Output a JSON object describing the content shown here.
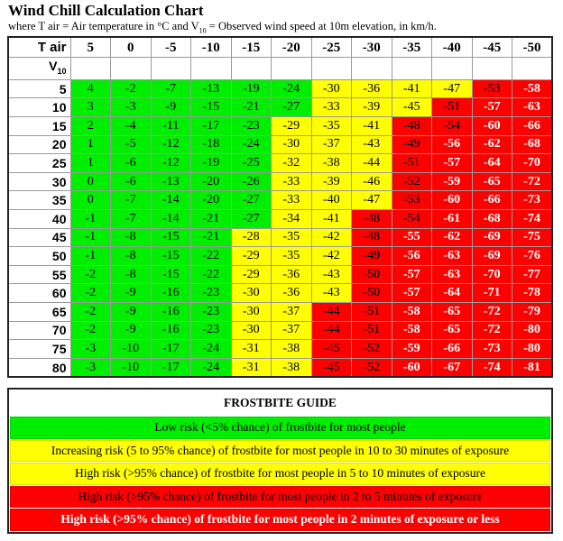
{
  "header": {
    "title": "Wind Chill Calculation Chart",
    "subtitle_part1": "where T air = Air temperature in °C and V",
    "subtitle_sub": "10",
    "subtitle_part2": " = Observed wind speed at 10m elevation, in km/h."
  },
  "table": {
    "col_label": "T air",
    "row_label_main": "V",
    "row_label_sub": "10",
    "columns": [
      "5",
      "0",
      "-5",
      "-10",
      "-15",
      "-20",
      "-25",
      "-30",
      "-35",
      "-40",
      "-45",
      "-50"
    ],
    "rows": [
      {
        "v": "5",
        "cells": [
          "4",
          "-2",
          "-7",
          "-13",
          "-19",
          "-24",
          "-30",
          "-36",
          "-41",
          "-47",
          "-53",
          "-58"
        ],
        "risk": [
          "g",
          "g",
          "g",
          "g",
          "g",
          "g",
          "y",
          "y",
          "y",
          "y",
          "r",
          "rw"
        ]
      },
      {
        "v": "10",
        "cells": [
          "3",
          "-3",
          "-9",
          "-15",
          "-21",
          "-27",
          "-33",
          "-39",
          "-45",
          "-51",
          "-57",
          "-63"
        ],
        "risk": [
          "g",
          "g",
          "g",
          "g",
          "g",
          "g",
          "y",
          "y",
          "y",
          "r",
          "rw",
          "rw"
        ]
      },
      {
        "v": "15",
        "cells": [
          "2",
          "-4",
          "-11",
          "-17",
          "-23",
          "-29",
          "-35",
          "-41",
          "-48",
          "-54",
          "-60",
          "-66"
        ],
        "risk": [
          "g",
          "g",
          "g",
          "g",
          "g",
          "y",
          "y",
          "y",
          "r",
          "r",
          "rw",
          "rw"
        ]
      },
      {
        "v": "20",
        "cells": [
          "1",
          "-5",
          "-12",
          "-18",
          "-24",
          "-30",
          "-37",
          "-43",
          "-49",
          "-56",
          "-62",
          "-68"
        ],
        "risk": [
          "g",
          "g",
          "g",
          "g",
          "g",
          "y",
          "y",
          "y",
          "r",
          "rw",
          "rw",
          "rw"
        ]
      },
      {
        "v": "25",
        "cells": [
          "1",
          "-6",
          "-12",
          "-19",
          "-25",
          "-32",
          "-38",
          "-44",
          "-51",
          "-57",
          "-64",
          "-70"
        ],
        "risk": [
          "g",
          "g",
          "g",
          "g",
          "g",
          "y",
          "y",
          "y",
          "r",
          "rw",
          "rw",
          "rw"
        ]
      },
      {
        "v": "30",
        "cells": [
          "0",
          "-6",
          "-13",
          "-20",
          "-26",
          "-33",
          "-39",
          "-46",
          "-52",
          "-59",
          "-65",
          "-72"
        ],
        "risk": [
          "g",
          "g",
          "g",
          "g",
          "g",
          "y",
          "y",
          "y",
          "r",
          "rw",
          "rw",
          "rw"
        ]
      },
      {
        "v": "35",
        "cells": [
          "0",
          "-7",
          "-14",
          "-20",
          "-27",
          "-33",
          "-40",
          "-47",
          "-53",
          "-60",
          "-66",
          "-73"
        ],
        "risk": [
          "g",
          "g",
          "g",
          "g",
          "g",
          "y",
          "y",
          "y",
          "r",
          "rw",
          "rw",
          "rw"
        ]
      },
      {
        "v": "40",
        "cells": [
          "-1",
          "-7",
          "-14",
          "-21",
          "-27",
          "-34",
          "-41",
          "-48",
          "-54",
          "-61",
          "-68",
          "-74"
        ],
        "risk": [
          "g",
          "g",
          "g",
          "g",
          "g",
          "y",
          "y",
          "r",
          "r",
          "rw",
          "rw",
          "rw"
        ]
      },
      {
        "v": "45",
        "cells": [
          "-1",
          "-8",
          "-15",
          "-21",
          "-28",
          "-35",
          "-42",
          "-48",
          "-55",
          "-62",
          "-69",
          "-75"
        ],
        "risk": [
          "g",
          "g",
          "g",
          "g",
          "y",
          "y",
          "y",
          "r",
          "rw",
          "rw",
          "rw",
          "rw"
        ]
      },
      {
        "v": "50",
        "cells": [
          "-1",
          "-8",
          "-15",
          "-22",
          "-29",
          "-35",
          "-42",
          "-49",
          "-56",
          "-63",
          "-69",
          "-76"
        ],
        "risk": [
          "g",
          "g",
          "g",
          "g",
          "y",
          "y",
          "y",
          "r",
          "rw",
          "rw",
          "rw",
          "rw"
        ]
      },
      {
        "v": "55",
        "cells": [
          "-2",
          "-8",
          "-15",
          "-22",
          "-29",
          "-36",
          "-43",
          "-50",
          "-57",
          "-63",
          "-70",
          "-77"
        ],
        "risk": [
          "g",
          "g",
          "g",
          "g",
          "y",
          "y",
          "y",
          "r",
          "rw",
          "rw",
          "rw",
          "rw"
        ]
      },
      {
        "v": "60",
        "cells": [
          "-2",
          "-9",
          "-16",
          "-23",
          "-30",
          "-36",
          "-43",
          "-50",
          "-57",
          "-64",
          "-71",
          "-78"
        ],
        "risk": [
          "g",
          "g",
          "g",
          "g",
          "y",
          "y",
          "y",
          "r",
          "rw",
          "rw",
          "rw",
          "rw"
        ]
      },
      {
        "v": "65",
        "cells": [
          "-2",
          "-9",
          "-16",
          "-23",
          "-30",
          "-37",
          "-44",
          "-51",
          "-58",
          "-65",
          "-72",
          "-79"
        ],
        "risk": [
          "g",
          "g",
          "g",
          "g",
          "y",
          "y",
          "r",
          "r",
          "rw",
          "rw",
          "rw",
          "rw"
        ]
      },
      {
        "v": "70",
        "cells": [
          "-2",
          "-9",
          "-16",
          "-23",
          "-30",
          "-37",
          "-44",
          "-51",
          "-58",
          "-65",
          "-72",
          "-80"
        ],
        "risk": [
          "g",
          "g",
          "g",
          "g",
          "y",
          "y",
          "r",
          "r",
          "rw",
          "rw",
          "rw",
          "rw"
        ]
      },
      {
        "v": "75",
        "cells": [
          "-3",
          "-10",
          "-17",
          "-24",
          "-31",
          "-38",
          "-45",
          "-52",
          "-59",
          "-66",
          "-73",
          "-80"
        ],
        "risk": [
          "g",
          "g",
          "g",
          "g",
          "y",
          "y",
          "r",
          "r",
          "rw",
          "rw",
          "rw",
          "rw"
        ]
      },
      {
        "v": "80",
        "cells": [
          "-3",
          "-10",
          "-17",
          "-24",
          "-31",
          "-38",
          "-45",
          "-52",
          "-60",
          "-67",
          "-74",
          "-81"
        ],
        "risk": [
          "g",
          "g",
          "g",
          "g",
          "y",
          "y",
          "r",
          "r",
          "rw",
          "rw",
          "rw",
          "rw"
        ]
      }
    ]
  },
  "guide": {
    "title": "FROSTBITE GUIDE",
    "items": [
      {
        "risk": "g",
        "text": "Low risk (<5% chance) of frostbite for most people"
      },
      {
        "risk": "y",
        "text": "Increasing risk (5 to 95% chance) of frostbite for most people in 10 to 30 minutes of exposure"
      },
      {
        "risk": "y",
        "text": "High risk (>95% chance) of frostbite for most people in 5 to 10 minutes of exposure"
      },
      {
        "risk": "r",
        "text": "High risk (>95% chance) of frostbite for most people in 2 to 5 minutes of exposure"
      },
      {
        "risk": "rw",
        "text": "High risk (>95% chance) of frostbite  for most people in 2 minutes of exposure or less"
      }
    ]
  },
  "colors": {
    "low_risk_green": "#00ee00",
    "increasing_risk_yellow": "#ffff00",
    "high_risk_red": "#ff0000",
    "severe_text_white": "#ffffff"
  },
  "chart_data": {
    "type": "table",
    "title": "Wind Chill Calculation Chart",
    "subtitle": "where T air = Air temperature in °C and V10 = Observed wind speed at 10m elevation, in km/h.",
    "xlabel": "T air (°C)",
    "ylabel": "V10 (km/h)",
    "columns": [
      5,
      0,
      -5,
      -10,
      -15,
      -20,
      -25,
      -30,
      -35,
      -40,
      -45,
      -50
    ],
    "rows": [
      5,
      10,
      15,
      20,
      25,
      30,
      35,
      40,
      45,
      50,
      55,
      60,
      65,
      70,
      75,
      80
    ],
    "values": [
      [
        4,
        -2,
        -7,
        -13,
        -19,
        -24,
        -30,
        -36,
        -41,
        -47,
        -53,
        -58
      ],
      [
        3,
        -3,
        -9,
        -15,
        -21,
        -27,
        -33,
        -39,
        -45,
        -51,
        -57,
        -63
      ],
      [
        2,
        -4,
        -11,
        -17,
        -23,
        -29,
        -35,
        -41,
        -48,
        -54,
        -60,
        -66
      ],
      [
        1,
        -5,
        -12,
        -18,
        -24,
        -30,
        -37,
        -43,
        -49,
        -56,
        -62,
        -68
      ],
      [
        1,
        -6,
        -12,
        -19,
        -25,
        -32,
        -38,
        -44,
        -51,
        -57,
        -64,
        -70
      ],
      [
        0,
        -6,
        -13,
        -20,
        -26,
        -33,
        -39,
        -46,
        -52,
        -59,
        -65,
        -72
      ],
      [
        0,
        -7,
        -14,
        -20,
        -27,
        -33,
        -40,
        -47,
        -53,
        -60,
        -66,
        -73
      ],
      [
        -1,
        -7,
        -14,
        -21,
        -27,
        -34,
        -41,
        -48,
        -54,
        -61,
        -68,
        -74
      ],
      [
        -1,
        -8,
        -15,
        -21,
        -28,
        -35,
        -42,
        -48,
        -55,
        -62,
        -69,
        -75
      ],
      [
        -1,
        -8,
        -15,
        -22,
        -29,
        -35,
        -42,
        -49,
        -56,
        -63,
        -69,
        -76
      ],
      [
        -2,
        -8,
        -15,
        -22,
        -29,
        -36,
        -43,
        -50,
        -57,
        -63,
        -70,
        -77
      ],
      [
        -2,
        -9,
        -16,
        -23,
        -30,
        -36,
        -43,
        -50,
        -57,
        -64,
        -71,
        -78
      ],
      [
        -2,
        -9,
        -16,
        -23,
        -30,
        -37,
        -44,
        -51,
        -58,
        -65,
        -72,
        -79
      ],
      [
        -2,
        -9,
        -16,
        -23,
        -30,
        -37,
        -44,
        -51,
        -58,
        -65,
        -72,
        -80
      ],
      [
        -3,
        -10,
        -17,
        -24,
        -31,
        -38,
        -45,
        -52,
        -59,
        -66,
        -73,
        -80
      ],
      [
        -3,
        -10,
        -17,
        -24,
        -31,
        -38,
        -45,
        -52,
        -60,
        -67,
        -74,
        -81
      ]
    ],
    "legend": [
      {
        "color": "green",
        "label": "Low risk (<5% chance) of frostbite for most people"
      },
      {
        "color": "yellow",
        "label": "Increasing risk (5 to 95% chance) of frostbite for most people in 10 to 30 minutes of exposure"
      },
      {
        "color": "yellow",
        "label": "High risk (>95% chance) of frostbite for most people in 5 to 10 minutes of exposure"
      },
      {
        "color": "red",
        "label": "High risk (>95% chance) of frostbite for most people in 2 to 5 minutes of exposure"
      },
      {
        "color": "red (white bold text)",
        "label": "High risk (>95% chance) of frostbite for most people in 2 minutes of exposure or less"
      }
    ],
    "legend_position": "bottom"
  }
}
